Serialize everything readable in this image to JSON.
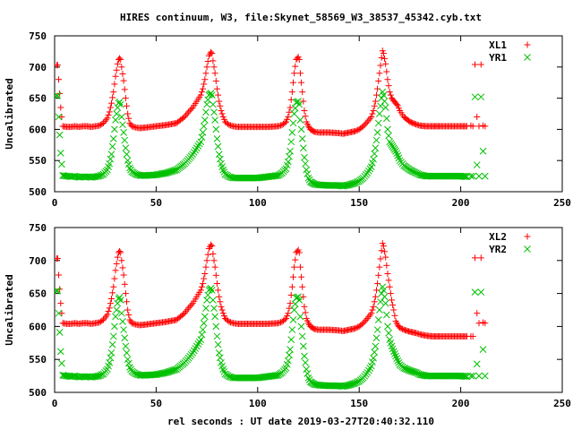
{
  "title": "HIRES continuum, W3, file:Skynet_58569_W3_38537_45342.cyb.txt",
  "xlabel": "rel seconds : UT date 2019-03-27T20:40:32.110",
  "colors": {
    "red": "#ff0000",
    "green": "#00c000",
    "axis": "#000000"
  },
  "chart_data": [
    {
      "type": "scatter",
      "ylabel": "Uncalibrated",
      "xlim": [
        0,
        250
      ],
      "ylim": [
        500,
        750
      ],
      "xticks": [
        "0",
        "50",
        "100",
        "150",
        "200",
        "250"
      ],
      "yticks": [
        "500",
        "550",
        "600",
        "650",
        "700",
        "750"
      ],
      "legend_position": "top-right",
      "series": [
        {
          "name": "XL1",
          "marker": "plus",
          "color": "#ff0000",
          "x": [
            1,
            1.5,
            2,
            3,
            4,
            6,
            8,
            10,
            12,
            14,
            16,
            18,
            20,
            22,
            24,
            26,
            27,
            28,
            29,
            30,
            31,
            31.5,
            32,
            32.5,
            33,
            34,
            35,
            36,
            37,
            38,
            40,
            42,
            45,
            50,
            55,
            60,
            62,
            64,
            66,
            68,
            70,
            72,
            73,
            74,
            75,
            76,
            77,
            77.5,
            78,
            79,
            80,
            81,
            82,
            83,
            84,
            86,
            88,
            90,
            95,
            100,
            105,
            110,
            112,
            114,
            115,
            116,
            117,
            118,
            119,
            120,
            120.5,
            121,
            122,
            123,
            124,
            125,
            126,
            127,
            128,
            130,
            135,
            140,
            142,
            145,
            148,
            150,
            152,
            154,
            156,
            157,
            158,
            159,
            160,
            161,
            161.5,
            162,
            163,
            164,
            165,
            166,
            167,
            168,
            169,
            170,
            172,
            175,
            178,
            180,
            183,
            186,
            190,
            195,
            200,
            203,
            205,
            206,
            207,
            208,
            209,
            210,
            211,
            212
          ],
          "y": [
            703,
            703,
            680,
            635,
            605,
            604,
            604,
            605,
            604,
            605,
            605,
            604,
            605,
            606,
            610,
            618,
            628,
            642,
            660,
            685,
            705,
            712,
            714,
            712,
            700,
            678,
            650,
            625,
            610,
            605,
            603,
            602,
            603,
            605,
            607,
            610,
            615,
            620,
            628,
            635,
            645,
            655,
            665,
            680,
            700,
            718,
            724,
            722,
            710,
            690,
            665,
            645,
            630,
            620,
            612,
            607,
            605,
            604,
            604,
            604,
            604,
            605,
            607,
            612,
            620,
            635,
            660,
            690,
            712,
            716,
            712,
            690,
            660,
            630,
            612,
            605,
            600,
            598,
            596,
            595,
            595,
            594,
            593,
            595,
            597,
            600,
            605,
            612,
            620,
            630,
            645,
            665,
            690,
            715,
            726,
            722,
            705,
            680,
            660,
            650,
            646,
            642,
            638,
            630,
            620,
            612,
            608,
            606,
            605,
            605,
            605,
            605,
            605,
            605,
            606,
            605,
            704,
            620,
            605,
            704,
            606,
            605
          ]
        },
        {
          "name": "YR1",
          "marker": "x",
          "color": "#00c000",
          "x": [
            1,
            1.5,
            2,
            3,
            4,
            6,
            8,
            10,
            12,
            14,
            16,
            18,
            20,
            22,
            24,
            26,
            27,
            28,
            29,
            30,
            31,
            31.5,
            32,
            32.5,
            33,
            34,
            35,
            36,
            37,
            38,
            40,
            42,
            45,
            50,
            55,
            60,
            62,
            64,
            66,
            68,
            70,
            72,
            73,
            74,
            75,
            76,
            77,
            77.5,
            78,
            79,
            80,
            81,
            82,
            83,
            84,
            86,
            88,
            90,
            95,
            100,
            105,
            110,
            112,
            114,
            115,
            116,
            117,
            118,
            119,
            120,
            120.5,
            121,
            122,
            123,
            124,
            125,
            126,
            127,
            128,
            130,
            135,
            140,
            142,
            145,
            148,
            150,
            152,
            154,
            156,
            157,
            158,
            159,
            160,
            161,
            161.5,
            162,
            163,
            164,
            165,
            166,
            167,
            168,
            169,
            170,
            172,
            175,
            178,
            180,
            183,
            186,
            190,
            195,
            200,
            203,
            205,
            206,
            207,
            208,
            209,
            210,
            211,
            212
          ],
          "y": [
            654,
            654,
            620,
            562,
            526,
            525,
            524,
            525,
            523,
            524,
            524,
            523,
            524,
            525,
            528,
            535,
            545,
            560,
            585,
            615,
            635,
            642,
            644,
            640,
            620,
            595,
            570,
            550,
            538,
            532,
            528,
            526,
            526,
            527,
            530,
            535,
            540,
            545,
            552,
            560,
            570,
            580,
            595,
            615,
            640,
            655,
            658,
            655,
            640,
            615,
            585,
            560,
            545,
            535,
            528,
            524,
            522,
            522,
            522,
            522,
            524,
            526,
            530,
            537,
            548,
            565,
            595,
            625,
            643,
            645,
            640,
            615,
            585,
            555,
            535,
            522,
            516,
            514,
            512,
            511,
            510,
            510,
            509,
            511,
            514,
            517,
            522,
            530,
            540,
            552,
            570,
            595,
            625,
            650,
            660,
            655,
            635,
            600,
            580,
            575,
            570,
            565,
            558,
            550,
            542,
            535,
            530,
            527,
            525,
            525,
            525,
            525,
            525,
            524,
            525,
            525,
            652,
            543,
            525,
            652,
            565,
            525
          ]
        }
      ]
    },
    {
      "type": "scatter",
      "ylabel": "Uncalibrated",
      "xlim": [
        0,
        250
      ],
      "ylim": [
        500,
        750
      ],
      "xticks": [
        "0",
        "50",
        "100",
        "150",
        "200",
        "250"
      ],
      "yticks": [
        "500",
        "550",
        "600",
        "650",
        "700",
        "750"
      ],
      "legend_position": "top-right",
      "series": [
        {
          "name": "XL2",
          "marker": "plus",
          "color": "#ff0000",
          "x": [
            1,
            1.5,
            2,
            3,
            4,
            6,
            8,
            10,
            12,
            14,
            16,
            18,
            20,
            22,
            24,
            26,
            27,
            28,
            29,
            30,
            31,
            31.5,
            32,
            32.5,
            33,
            34,
            35,
            36,
            37,
            38,
            40,
            42,
            45,
            50,
            55,
            60,
            62,
            64,
            66,
            68,
            70,
            72,
            73,
            74,
            75,
            76,
            77,
            77.5,
            78,
            79,
            80,
            81,
            82,
            83,
            84,
            86,
            88,
            90,
            95,
            100,
            105,
            110,
            112,
            114,
            115,
            116,
            117,
            118,
            119,
            120,
            120.5,
            121,
            122,
            123,
            124,
            125,
            126,
            127,
            128,
            130,
            135,
            140,
            142,
            145,
            148,
            150,
            152,
            154,
            156,
            157,
            158,
            159,
            160,
            161,
            161.5,
            162,
            163,
            164,
            165,
            166,
            167,
            168,
            169,
            170,
            172,
            175,
            178,
            180,
            183,
            186,
            190,
            195,
            200,
            203,
            205,
            206,
            207,
            208,
            209,
            210,
            211,
            212
          ],
          "y": [
            703,
            703,
            678,
            635,
            605,
            604,
            604,
            605,
            604,
            605,
            605,
            604,
            605,
            606,
            610,
            618,
            628,
            642,
            660,
            685,
            705,
            712,
            714,
            712,
            700,
            678,
            650,
            625,
            610,
            605,
            603,
            602,
            603,
            605,
            607,
            610,
            615,
            620,
            628,
            635,
            645,
            655,
            665,
            680,
            700,
            718,
            724,
            722,
            710,
            690,
            665,
            645,
            630,
            620,
            612,
            607,
            605,
            604,
            604,
            604,
            604,
            605,
            607,
            612,
            620,
            635,
            660,
            690,
            712,
            716,
            712,
            690,
            660,
            630,
            612,
            605,
            600,
            598,
            596,
            595,
            595,
            594,
            593,
            595,
            597,
            600,
            605,
            612,
            620,
            630,
            645,
            665,
            690,
            715,
            726,
            722,
            705,
            680,
            660,
            640,
            625,
            608,
            602,
            598,
            595,
            592,
            590,
            588,
            586,
            585,
            585,
            585,
            585,
            585,
            585,
            585,
            704,
            620,
            605,
            704,
            606,
            605
          ]
        },
        {
          "name": "YR2",
          "marker": "x",
          "color": "#00c000",
          "x": [
            1,
            1.5,
            2,
            3,
            4,
            6,
            8,
            10,
            12,
            14,
            16,
            18,
            20,
            22,
            24,
            26,
            27,
            28,
            29,
            30,
            31,
            31.5,
            32,
            32.5,
            33,
            34,
            35,
            36,
            37,
            38,
            40,
            42,
            45,
            50,
            55,
            60,
            62,
            64,
            66,
            68,
            70,
            72,
            73,
            74,
            75,
            76,
            77,
            77.5,
            78,
            79,
            80,
            81,
            82,
            83,
            84,
            86,
            88,
            90,
            95,
            100,
            105,
            110,
            112,
            114,
            115,
            116,
            117,
            118,
            119,
            120,
            120.5,
            121,
            122,
            123,
            124,
            125,
            126,
            127,
            128,
            130,
            135,
            140,
            142,
            145,
            148,
            150,
            152,
            154,
            156,
            157,
            158,
            159,
            160,
            161,
            161.5,
            162,
            163,
            164,
            165,
            166,
            167,
            168,
            169,
            170,
            172,
            175,
            178,
            180,
            183,
            186,
            190,
            195,
            200,
            203,
            205,
            206,
            207,
            208,
            209,
            210,
            211,
            212
          ],
          "y": [
            654,
            654,
            620,
            562,
            526,
            525,
            524,
            525,
            523,
            524,
            524,
            523,
            524,
            525,
            528,
            535,
            545,
            560,
            585,
            615,
            635,
            642,
            644,
            640,
            620,
            595,
            570,
            550,
            538,
            532,
            528,
            526,
            526,
            527,
            530,
            535,
            540,
            545,
            552,
            560,
            570,
            580,
            595,
            615,
            640,
            655,
            658,
            655,
            640,
            615,
            585,
            560,
            545,
            535,
            528,
            524,
            522,
            522,
            522,
            522,
            524,
            526,
            530,
            537,
            548,
            565,
            595,
            625,
            643,
            645,
            640,
            615,
            585,
            555,
            535,
            522,
            516,
            514,
            512,
            511,
            510,
            510,
            509,
            511,
            514,
            517,
            522,
            530,
            540,
            552,
            570,
            595,
            625,
            650,
            660,
            655,
            635,
            600,
            580,
            570,
            562,
            555,
            548,
            542,
            537,
            533,
            530,
            527,
            525,
            525,
            525,
            525,
            525,
            524,
            525,
            525,
            652,
            543,
            525,
            652,
            565,
            525
          ]
        }
      ]
    }
  ]
}
